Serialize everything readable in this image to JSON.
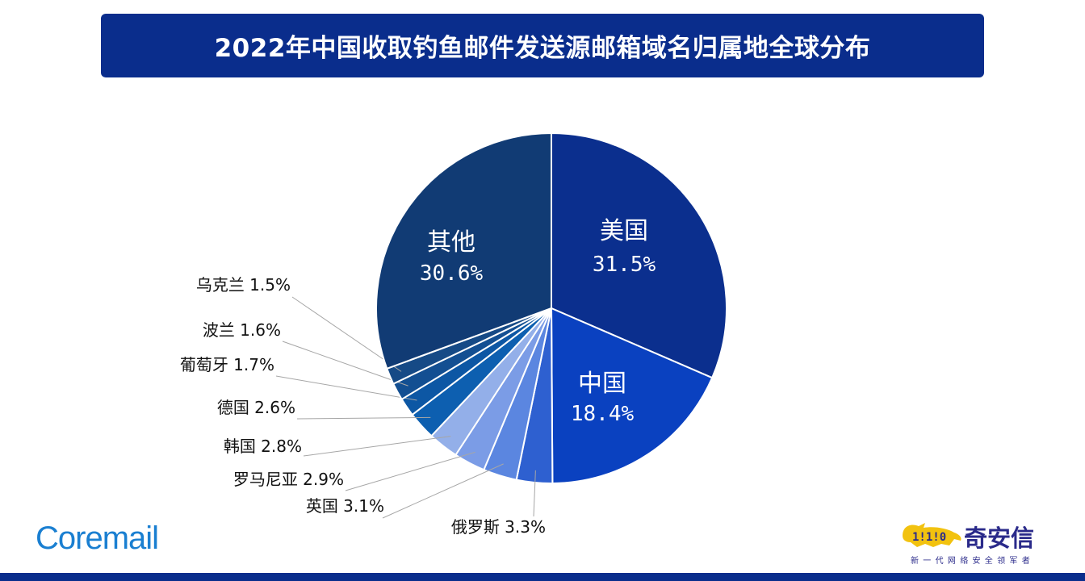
{
  "title": "2022年中国收取钓鱼邮件发送源邮箱域名归属地全球分布",
  "brand_left": "Coremail",
  "brand_right": {
    "name": "奇安信",
    "slogan": "新一代网络安全领军者"
  },
  "colors": {
    "title_bg": "#0a2d8c",
    "bottom_bar": "#0a2d8c",
    "coremail": "#1a7fd1",
    "qax_text": "#2a2a8a",
    "qax_logo": "#f2c20f"
  },
  "chart_data": {
    "type": "pie",
    "title": "",
    "start": "12 o'clock, clockwise",
    "slices": [
      {
        "label": "美国",
        "value": 31.5,
        "display": "31.5%",
        "color": "#0b2f8e",
        "label_position": "inside"
      },
      {
        "label": "中国",
        "value": 18.4,
        "display": "18.4%",
        "color": "#0a41c0",
        "label_position": "inside"
      },
      {
        "label": "俄罗斯",
        "value": 3.3,
        "display": "3.3%",
        "color": "#2e60d0",
        "label_position": "outside"
      },
      {
        "label": "英国",
        "value": 3.1,
        "display": "3.1%",
        "color": "#5b86e0",
        "label_position": "outside"
      },
      {
        "label": "罗马尼亚",
        "value": 2.9,
        "display": "2.9%",
        "color": "#7b9ce6",
        "label_position": "outside"
      },
      {
        "label": "韩国",
        "value": 2.8,
        "display": "2.8%",
        "color": "#93afe9",
        "label_position": "outside"
      },
      {
        "label": "德国",
        "value": 2.6,
        "display": "2.6%",
        "color": "#0d5fb0",
        "label_position": "outside"
      },
      {
        "label": "葡萄牙",
        "value": 1.7,
        "display": "1.7%",
        "color": "#0d57a4",
        "label_position": "outside"
      },
      {
        "label": "波兰",
        "value": 1.6,
        "display": "1.6%",
        "color": "#134f92",
        "label_position": "outside"
      },
      {
        "label": "乌克兰",
        "value": 1.5,
        "display": "1.5%",
        "color": "#164a86",
        "label_position": "outside"
      },
      {
        "label": "其他",
        "value": 30.6,
        "display": "30.6%",
        "color": "#113b74",
        "label_position": "inside"
      }
    ]
  }
}
